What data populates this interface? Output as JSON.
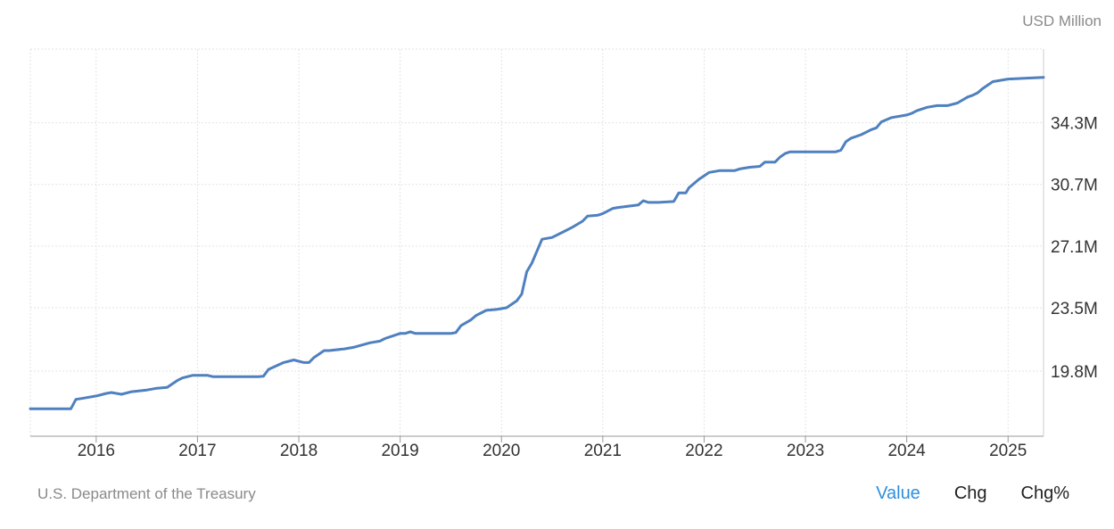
{
  "header": {
    "unit": "USD Million"
  },
  "footer": {
    "source": "U.S. Department of the Treasury",
    "tabs": [
      {
        "label": "Value",
        "active": true
      },
      {
        "label": "Chg",
        "active": false
      },
      {
        "label": "Chg%",
        "active": false
      }
    ]
  },
  "colors": {
    "line": "#4f80bf",
    "active_tab": "#2e8fe0",
    "grid": "#e3e3e3"
  },
  "chart_data": {
    "type": "line",
    "title": "",
    "xlabel": "",
    "ylabel": "USD Million",
    "grid": true,
    "y_axis_side": "right",
    "xlim": [
      2015.35,
      2025.35
    ],
    "ylim": [
      16,
      38.6
    ],
    "y_ticks": [
      19.8,
      23.5,
      27.1,
      30.7,
      34.3
    ],
    "y_tick_labels": [
      "19.8M",
      "23.5M",
      "27.1M",
      "30.7M",
      "34.3M"
    ],
    "x_ticks": [
      2016,
      2017,
      2018,
      2019,
      2020,
      2021,
      2022,
      2023,
      2024,
      2025
    ],
    "x_tick_labels": [
      "2016",
      "2017",
      "2018",
      "2019",
      "2020",
      "2021",
      "2022",
      "2023",
      "2024",
      "2025"
    ],
    "series": [
      {
        "x": [
          2015.35,
          2015.75,
          2015.8,
          2015.85,
          2016.0,
          2016.1,
          2016.15,
          2016.25,
          2016.35,
          2016.5,
          2016.6,
          2016.7,
          2016.8,
          2016.85,
          2016.95,
          2017.1,
          2017.15,
          2017.6,
          2017.65,
          2017.7,
          2017.85,
          2017.95,
          2018.05,
          2018.1,
          2018.15,
          2018.25,
          2018.3,
          2018.45,
          2018.55,
          2018.7,
          2018.8,
          2018.85,
          2018.95,
          2019.0,
          2019.05,
          2019.1,
          2019.15,
          2019.5,
          2019.55,
          2019.6,
          2019.7,
          2019.75,
          2019.85,
          2019.95,
          2020.05,
          2020.15,
          2020.2,
          2020.25,
          2020.3,
          2020.35,
          2020.4,
          2020.5,
          2020.6,
          2020.7,
          2020.8,
          2020.85,
          2020.95,
          2021.0,
          2021.1,
          2021.15,
          2021.35,
          2021.4,
          2021.45,
          2021.55,
          2021.7,
          2021.75,
          2021.82,
          2021.85,
          2021.95,
          2022.0,
          2022.05,
          2022.15,
          2022.25,
          2022.3,
          2022.35,
          2022.45,
          2022.55,
          2022.6,
          2022.7,
          2022.75,
          2022.8,
          2022.85,
          2023.0,
          2023.3,
          2023.35,
          2023.4,
          2023.45,
          2023.55,
          2023.65,
          2023.7,
          2023.75,
          2023.85,
          2023.95,
          2024.0,
          2024.05,
          2024.1,
          2024.2,
          2024.3,
          2024.4,
          2024.5,
          2024.6,
          2024.65,
          2024.7,
          2024.75,
          2024.85,
          2025.0,
          2025.35
        ],
        "values": [
          17.6,
          17.6,
          18.15,
          18.2,
          18.35,
          18.5,
          18.55,
          18.45,
          18.6,
          18.7,
          18.8,
          18.85,
          19.25,
          19.4,
          19.55,
          19.55,
          19.48,
          19.48,
          19.5,
          19.9,
          20.3,
          20.45,
          20.3,
          20.3,
          20.6,
          21.0,
          21.0,
          21.1,
          21.2,
          21.45,
          21.55,
          21.7,
          21.9,
          22.0,
          22.0,
          22.1,
          22.0,
          22.0,
          22.05,
          22.45,
          22.8,
          23.05,
          23.35,
          23.4,
          23.5,
          23.9,
          24.3,
          25.6,
          26.1,
          26.8,
          27.5,
          27.6,
          27.9,
          28.2,
          28.55,
          28.85,
          28.9,
          29.0,
          29.3,
          29.35,
          29.5,
          29.75,
          29.65,
          29.65,
          29.7,
          30.2,
          30.2,
          30.5,
          31.0,
          31.2,
          31.4,
          31.5,
          31.5,
          31.5,
          31.6,
          31.7,
          31.75,
          32.0,
          32.0,
          32.3,
          32.5,
          32.6,
          32.6,
          32.6,
          32.7,
          33.2,
          33.4,
          33.6,
          33.9,
          34.0,
          34.35,
          34.6,
          34.7,
          34.75,
          34.85,
          35.0,
          35.2,
          35.3,
          35.3,
          35.45,
          35.8,
          35.9,
          36.05,
          36.3,
          36.7,
          36.85,
          36.95
        ]
      }
    ]
  }
}
